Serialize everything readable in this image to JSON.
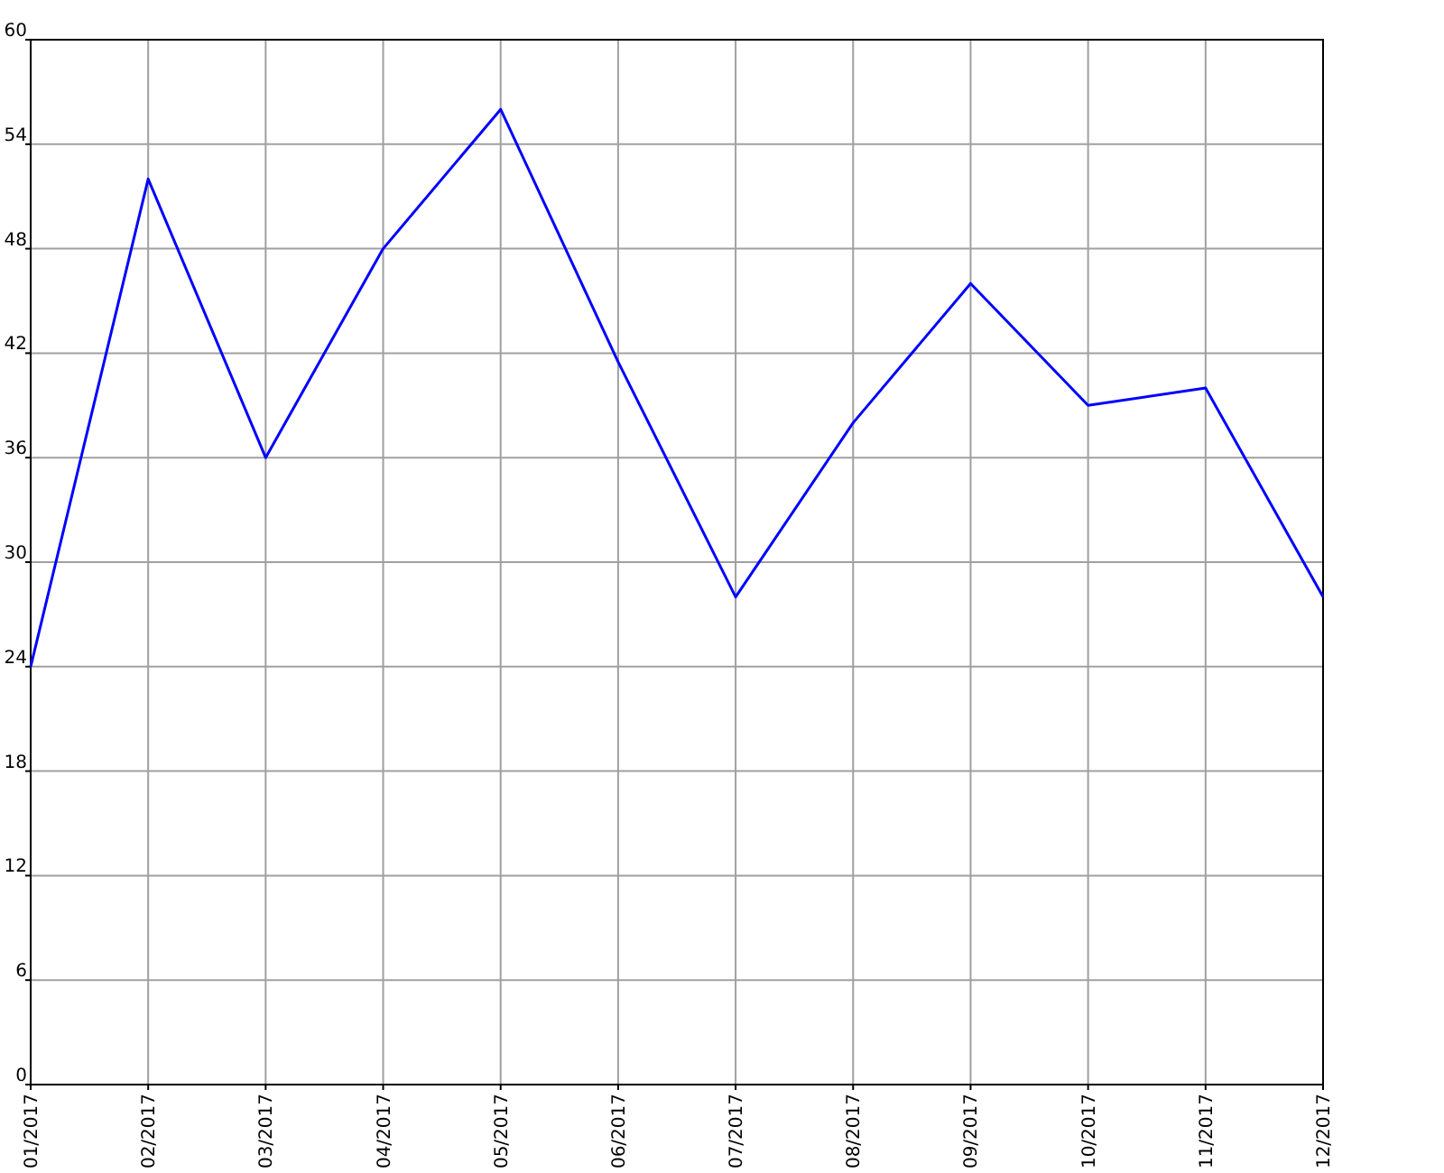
{
  "chart_data": {
    "type": "line",
    "categories": [
      "01/2017",
      "02/2017",
      "03/2017",
      "04/2017",
      "05/2017",
      "06/2017",
      "07/2017",
      "08/2017",
      "09/2017",
      "10/2017",
      "11/2017",
      "12/2017"
    ],
    "series": [
      {
        "color": "#0000ff",
        "values": [
          24,
          52,
          36,
          48,
          56,
          41.5,
          28,
          38,
          46,
          39,
          40,
          28
        ]
      }
    ],
    "ylim": [
      0,
      60
    ],
    "yticks": [
      0,
      6,
      12,
      18,
      24,
      30,
      36,
      42,
      48,
      54,
      60
    ],
    "grid": true,
    "marker": "none",
    "line_style": "solid"
  }
}
